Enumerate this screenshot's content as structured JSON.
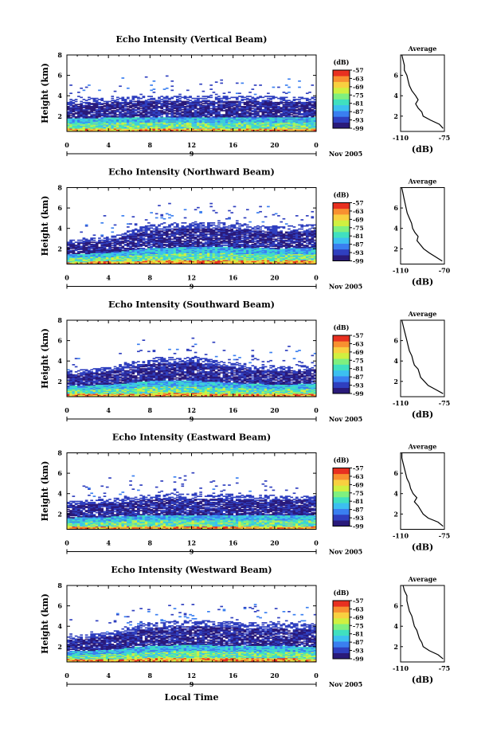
{
  "chart_data": [
    {
      "type": "heatmap",
      "title": "Echo Intensity (Vertical Beam)",
      "ylabel": "Height (km)",
      "xticks": [
        "0",
        "4",
        "8",
        "12",
        "16",
        "20",
        "0"
      ],
      "yticks": [
        "8",
        "6",
        "4",
        "2"
      ],
      "date_label": "9",
      "month_label": "Nov 2005",
      "x_range_hours": [
        0,
        24
      ],
      "y_range_km": [
        0.5,
        8
      ],
      "colorbar_unit": "(dB)",
      "colorbar_ticks": [
        "-57",
        "-63",
        "-69",
        "-75",
        "-81",
        "-87",
        "-93",
        "-99"
      ],
      "echo_top_km": {
        "x_hours": [
          0,
          4,
          8,
          12,
          16,
          20,
          24
        ],
        "values": [
          3.6,
          3.8,
          4.0,
          4.0,
          4.0,
          3.9,
          3.8
        ]
      },
      "average_profile": {
        "title": "Average",
        "xlabel": "(dB)",
        "xticks": [
          "-110",
          "-75"
        ],
        "yticks": [
          "6",
          "4",
          "2"
        ],
        "xlim": [
          -110,
          -75
        ],
        "ylim": [
          0.5,
          8
        ],
        "height_km": [
          0.8,
          1.2,
          1.6,
          2.0,
          2.4,
          2.8,
          3.2,
          3.6,
          4.0,
          4.5,
          5.0,
          5.5,
          6.0,
          6.5,
          7.0,
          7.5,
          8.0
        ],
        "values": [
          -76,
          -79,
          -86,
          -92,
          -93,
          -96,
          -98,
          -96,
          -98,
          -101,
          -103,
          -104,
          -105,
          -107,
          -107,
          -108,
          -109
        ]
      }
    },
    {
      "type": "heatmap",
      "title": "Echo Intensity (Northward Beam)",
      "ylabel": "Height (km)",
      "xticks": [
        "0",
        "4",
        "8",
        "12",
        "16",
        "20",
        "0"
      ],
      "yticks": [
        "8",
        "6",
        "4",
        "2"
      ],
      "date_label": "9",
      "month_label": "Nov 2005",
      "x_range_hours": [
        0,
        24
      ],
      "y_range_km": [
        0.5,
        8
      ],
      "colorbar_unit": "(dB)",
      "colorbar_ticks": [
        "-57",
        "-63",
        "-69",
        "-75",
        "-81",
        "-87",
        "-93",
        "-99"
      ],
      "echo_top_km": {
        "x_hours": [
          0,
          4,
          8,
          12,
          16,
          20,
          24
        ],
        "values": [
          2.8,
          3.2,
          4.4,
          4.6,
          4.5,
          4.2,
          4.4
        ]
      },
      "average_profile": {
        "title": "Average",
        "xlabel": "(dB)",
        "xticks": [
          "-110",
          "-70"
        ],
        "yticks": [
          "6",
          "4",
          "2"
        ],
        "xlim": [
          -110,
          -70
        ],
        "ylim": [
          0.5,
          8
        ],
        "height_km": [
          0.8,
          1.2,
          1.6,
          2.0,
          2.4,
          2.8,
          3.2,
          3.6,
          4.0,
          4.5,
          5.0,
          5.5,
          6.0,
          6.5,
          7.0,
          7.5,
          8.0
        ],
        "values": [
          -72,
          -78,
          -84,
          -89,
          -92,
          -95,
          -94,
          -97,
          -99,
          -100,
          -102,
          -104,
          -105,
          -106,
          -107,
          -108,
          -109
        ]
      }
    },
    {
      "type": "heatmap",
      "title": "Echo Intensity (Southward Beam)",
      "ylabel": "Height (km)",
      "xticks": [
        "0",
        "4",
        "8",
        "12",
        "16",
        "20",
        "0"
      ],
      "yticks": [
        "8",
        "6",
        "4",
        "2"
      ],
      "date_label": "9",
      "month_label": "Nov 2005",
      "x_range_hours": [
        0,
        24
      ],
      "y_range_km": [
        0.5,
        8
      ],
      "colorbar_unit": "(dB)",
      "colorbar_ticks": [
        "-57",
        "-63",
        "-69",
        "-75",
        "-81",
        "-87",
        "-93",
        "-99"
      ],
      "echo_top_km": {
        "x_hours": [
          0,
          4,
          8,
          12,
          16,
          20,
          24
        ],
        "values": [
          3.0,
          3.4,
          4.3,
          4.4,
          3.8,
          3.4,
          3.6
        ]
      },
      "average_profile": {
        "title": "Average",
        "xlabel": "(dB)",
        "xticks": [
          "-110",
          "-75"
        ],
        "yticks": [
          "6",
          "4",
          "2"
        ],
        "xlim": [
          -110,
          -75
        ],
        "ylim": [
          0.5,
          8
        ],
        "height_km": [
          0.8,
          1.2,
          1.6,
          2.0,
          2.4,
          2.8,
          3.2,
          3.6,
          4.0,
          4.5,
          5.0,
          5.5,
          6.0,
          6.5,
          7.0,
          7.5,
          8.0
        ],
        "values": [
          -76,
          -82,
          -88,
          -91,
          -94,
          -95,
          -96,
          -99,
          -100,
          -101,
          -103,
          -104,
          -105,
          -106,
          -107,
          -108,
          -109
        ]
      }
    },
    {
      "type": "heatmap",
      "title": "Echo Intensity (Eastward Beam)",
      "ylabel": "Height (km)",
      "xticks": [
        "0",
        "4",
        "8",
        "12",
        "16",
        "20",
        "0"
      ],
      "yticks": [
        "8",
        "6",
        "4",
        "2"
      ],
      "date_label": "9",
      "month_label": "Nov 2005",
      "x_range_hours": [
        0,
        24
      ],
      "y_range_km": [
        0.5,
        8
      ],
      "colorbar_unit": "(dB)",
      "colorbar_ticks": [
        "-57",
        "-63",
        "-69",
        "-75",
        "-81",
        "-87",
        "-93",
        "-99"
      ],
      "echo_top_km": {
        "x_hours": [
          0,
          4,
          8,
          12,
          16,
          20,
          24
        ],
        "values": [
          3.2,
          3.5,
          3.9,
          4.0,
          3.9,
          3.8,
          3.8
        ]
      },
      "average_profile": {
        "title": "Average",
        "xlabel": "(dB)",
        "xticks": [
          "-110",
          "-75"
        ],
        "yticks": [
          "6",
          "4",
          "2"
        ],
        "xlim": [
          -110,
          -75
        ],
        "ylim": [
          0.5,
          8
        ],
        "height_km": [
          0.8,
          1.2,
          1.6,
          2.0,
          2.4,
          2.8,
          3.2,
          3.6,
          4.0,
          4.5,
          5.0,
          5.5,
          6.0,
          6.5,
          7.0,
          7.5,
          8.0
        ],
        "values": [
          -76,
          -80,
          -88,
          -92,
          -94,
          -96,
          -99,
          -97,
          -100,
          -102,
          -103,
          -105,
          -106,
          -107,
          -108,
          -109,
          -109
        ]
      }
    },
    {
      "type": "heatmap",
      "title": "Echo Intensity (Westward Beam)",
      "ylabel": "Height (km)",
      "xticks": [
        "0",
        "4",
        "8",
        "12",
        "16",
        "20",
        "0"
      ],
      "yticks": [
        "8",
        "6",
        "4",
        "2"
      ],
      "date_label": "9",
      "month_label": "Nov 2005",
      "xlabel": "Local Time",
      "x_range_hours": [
        0,
        24
      ],
      "y_range_km": [
        0.5,
        8
      ],
      "colorbar_unit": "(dB)",
      "colorbar_ticks": [
        "-57",
        "-63",
        "-69",
        "-75",
        "-81",
        "-87",
        "-93",
        "-99"
      ],
      "echo_top_km": {
        "x_hours": [
          0,
          4,
          8,
          12,
          16,
          20,
          24
        ],
        "values": [
          3.0,
          3.4,
          4.4,
          4.6,
          4.4,
          4.3,
          4.2
        ]
      },
      "average_profile": {
        "title": "Average",
        "xlabel": "(dB)",
        "xticks": [
          "-110",
          "-75"
        ],
        "yticks": [
          "6",
          "4",
          "2"
        ],
        "xlim": [
          -110,
          -75
        ],
        "ylim": [
          0.5,
          8
        ],
        "height_km": [
          0.8,
          1.2,
          1.6,
          2.0,
          2.4,
          2.8,
          3.2,
          3.6,
          4.0,
          4.5,
          5.0,
          5.5,
          6.0,
          6.5,
          7.0,
          7.5,
          8.0
        ],
        "values": [
          -76,
          -80,
          -87,
          -92,
          -93,
          -95,
          -96,
          -97,
          -99,
          -100,
          -101,
          -103,
          -104,
          -105,
          -105,
          -107,
          -108
        ]
      }
    }
  ],
  "colors": {
    "colorscale": [
      "#2a1a7a",
      "#2f3fbf",
      "#3a7ff0",
      "#3cc0f0",
      "#40e0c0",
      "#7ff07f",
      "#d0f040",
      "#f8d040",
      "#f89030",
      "#e83020"
    ]
  }
}
